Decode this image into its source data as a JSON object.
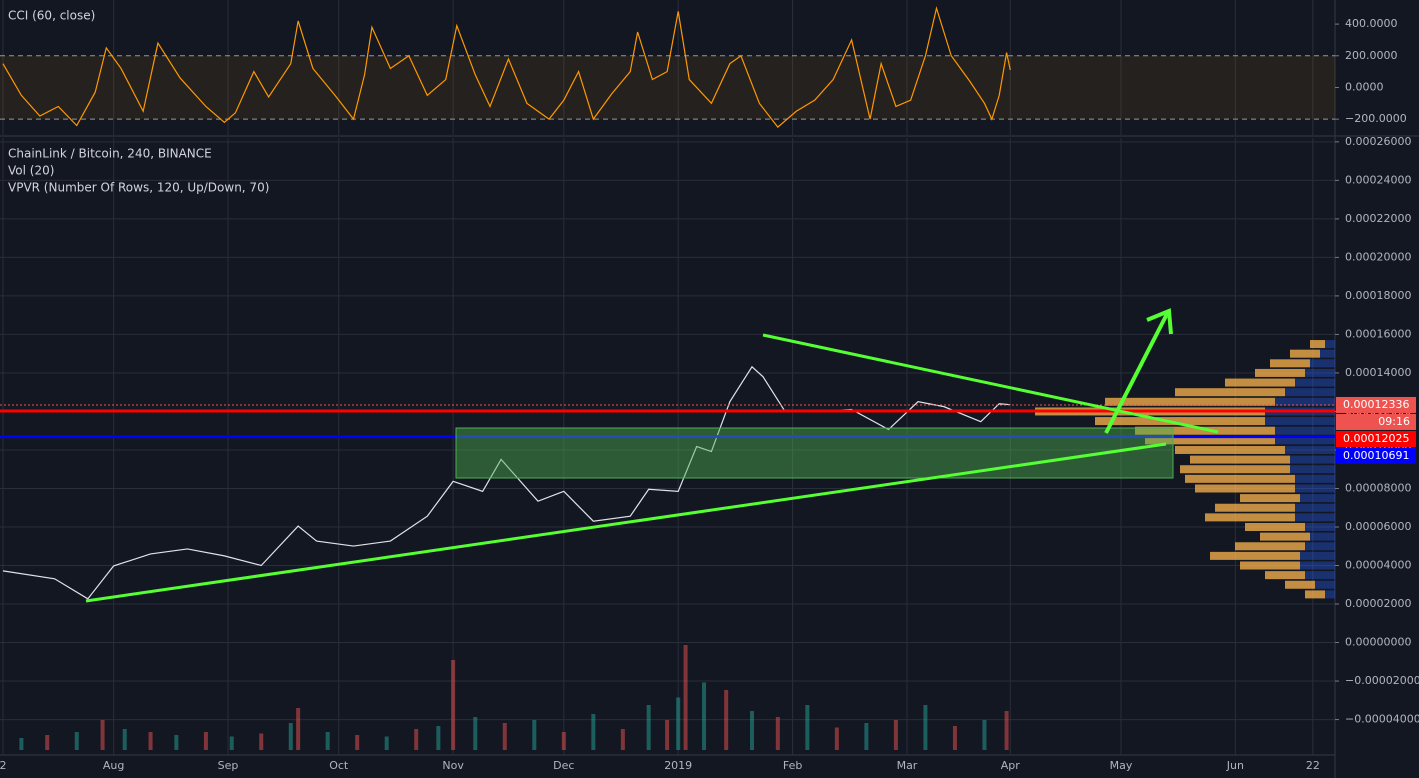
{
  "chart_data": [
    {
      "type": "line",
      "title": "CCI (60, close)",
      "color": "#ff9800",
      "band": [
        -200,
        200
      ],
      "band_color": "rgba(255,152,0,0.08)",
      "ylim": [
        -300,
        552
      ],
      "yticks": [
        {
          "value": 400,
          "label": "400.0000"
        },
        {
          "value": 200,
          "label": "200.0000"
        },
        {
          "value": 0,
          "label": "0.0000"
        },
        {
          "value": -200,
          "label": "−200.0000"
        }
      ],
      "x": [
        0,
        5,
        10,
        15,
        20,
        25,
        28,
        32,
        38,
        42,
        48,
        55,
        60,
        63,
        68,
        72,
        78,
        80,
        84,
        90,
        95,
        98,
        100,
        105,
        110,
        115,
        120,
        123,
        128,
        132,
        137,
        142,
        148,
        152,
        156,
        160,
        165,
        170,
        172,
        176,
        180,
        183,
        186,
        192,
        197,
        200,
        205,
        210,
        215,
        220,
        225,
        230,
        235,
        238,
        242,
        246,
        250,
        253,
        257,
        262,
        266,
        268,
        270,
        272,
        273
      ],
      "values": [
        150,
        -50,
        -180,
        -120,
        -240,
        -30,
        250,
        120,
        -150,
        280,
        60,
        -120,
        -220,
        -160,
        100,
        -60,
        150,
        420,
        120,
        -50,
        -200,
        80,
        380,
        120,
        200,
        -50,
        50,
        390,
        80,
        -120,
        180,
        -100,
        -200,
        -80,
        100,
        -200,
        -40,
        100,
        350,
        50,
        100,
        480,
        50,
        -100,
        150,
        200,
        -100,
        -250,
        -150,
        -80,
        50,
        300,
        -200,
        150,
        -120,
        -80,
        200,
        500,
        200,
        40,
        -100,
        -200,
        -50,
        220,
        110
      ]
    },
    {
      "type": "line",
      "title": "ChainLink / Bitcoin, 240, BINANCE",
      "subtitles": [
        "Vol (20)",
        "VPVR (Number Of Rows, 120, Up/Down, 70)"
      ],
      "color": "#e0e3eb",
      "ylim": [
        -5.84e-05,
        0.000262
      ],
      "yticks": [
        {
          "value": 0.00026,
          "label": "0.00026000"
        },
        {
          "value": 0.00024,
          "label": "0.00024000"
        },
        {
          "value": 0.00022,
          "label": "0.00022000"
        },
        {
          "value": 0.0002,
          "label": "0.00020000"
        },
        {
          "value": 0.00018,
          "label": "0.00018000"
        },
        {
          "value": 0.00016,
          "label": "0.00016000"
        },
        {
          "value": 0.00014,
          "label": "0.00014000"
        },
        {
          "value": 0.00012,
          "label": "0.00012000"
        },
        {
          "value": 0.0001,
          "label": "0.00010000"
        },
        {
          "value": 8e-05,
          "label": "0.00008000"
        },
        {
          "value": 6e-05,
          "label": "0.00006000"
        },
        {
          "value": 4e-05,
          "label": "0.00004000"
        },
        {
          "value": 2e-05,
          "label": "0.00002000"
        },
        {
          "value": 0,
          "label": "0.00000000"
        },
        {
          "value": -2e-05,
          "label": "−0.00002000"
        },
        {
          "value": -4e-05,
          "label": "−0.00004000"
        }
      ],
      "xlim": [
        -0.8,
        361
      ],
      "xticks": [
        {
          "value": 0,
          "label": "2"
        },
        {
          "value": 30,
          "label": "Aug"
        },
        {
          "value": 61,
          "label": "Sep"
        },
        {
          "value": 91,
          "label": "Oct"
        },
        {
          "value": 122,
          "label": "Nov"
        },
        {
          "value": 152,
          "label": "Dec"
        },
        {
          "value": 183,
          "label": "2019"
        },
        {
          "value": 214,
          "label": "Feb"
        },
        {
          "value": 245,
          "label": "Mar"
        },
        {
          "value": 273,
          "label": "Apr"
        },
        {
          "value": 303,
          "label": "May"
        },
        {
          "value": 334,
          "label": "Jun"
        },
        {
          "value": 355,
          "label": "22"
        }
      ],
      "grid": true,
      "x": [
        0,
        14,
        23,
        30,
        40,
        50,
        60,
        70,
        80,
        85,
        95,
        105,
        115,
        122,
        130,
        135,
        145,
        152,
        160,
        170,
        175,
        183,
        188,
        192,
        197,
        203,
        206,
        212,
        220,
        230,
        240,
        248,
        255,
        265,
        270,
        273
      ],
      "values": [
        3.72e-05,
        3.31e-05,
        2.27e-05,
        3.98e-05,
        4.6e-05,
        4.86e-05,
        4.5e-05,
        4e-05,
        6.05e-05,
        5.27e-05,
        5.01e-05,
        5.27e-05,
        6.56e-05,
        8.37e-05,
        7.85e-05,
        9.51e-05,
        7.34e-05,
        7.85e-05,
        6.3e-05,
        6.56e-05,
        7.96e-05,
        7.85e-05,
        0.0001018,
        9.92e-05,
        0.0001251,
        0.0001432,
        0.000138,
        0.0001199,
        0.0001199,
        0.000121,
        0.0001106,
        0.0001251,
        0.0001225,
        0.0001147,
        0.000124,
        0.0001235
      ],
      "volume": {
        "colors": [
          "rgba(38,166,154,0.5)",
          "rgba(239,83,80,0.5)"
        ],
        "x": [
          5,
          12,
          20,
          27,
          33,
          40,
          47,
          55,
          62,
          70,
          78,
          80,
          88,
          96,
          104,
          112,
          118,
          122,
          128,
          136,
          144,
          152,
          160,
          168,
          175,
          180,
          183,
          185,
          190,
          196,
          203,
          210,
          218,
          226,
          234,
          242,
          250,
          258,
          266,
          272
        ],
        "values": [
          8,
          10,
          12,
          20,
          14,
          12,
          10,
          12,
          9,
          11,
          18,
          28,
          12,
          10,
          9,
          14,
          16,
          60,
          22,
          18,
          20,
          12,
          24,
          14,
          30,
          20,
          35,
          70,
          45,
          40,
          26,
          22,
          30,
          15,
          18,
          20,
          30,
          16,
          20,
          26
        ]
      },
      "profile": {
        "colors": [
          "rgba(41,98,255,0.35)",
          "rgba(255,183,77,0.75)"
        ],
        "prices": [
          2.5e-05,
          3e-05,
          3.5e-05,
          4e-05,
          4.5e-05,
          5e-05,
          5.5e-05,
          6e-05,
          6.5e-05,
          7e-05,
          7.5e-05,
          8e-05,
          8.5e-05,
          9e-05,
          9.5e-05,
          0.0001,
          0.000105,
          0.00011,
          0.000115,
          0.00012,
          0.000125,
          0.00013,
          0.000135,
          0.00014,
          0.000145,
          0.00015,
          0.000155
        ],
        "up": [
          10,
          20,
          30,
          35,
          35,
          30,
          25,
          30,
          40,
          40,
          35,
          40,
          40,
          45,
          45,
          50,
          60,
          60,
          70,
          70,
          60,
          50,
          40,
          30,
          25,
          15,
          10
        ],
        "down": [
          20,
          30,
          40,
          60,
          90,
          70,
          50,
          60,
          90,
          80,
          60,
          100,
          110,
          110,
          100,
          110,
          130,
          140,
          170,
          230,
          170,
          110,
          70,
          50,
          40,
          30,
          15
        ]
      },
      "price_lines": [
        {
          "value": 0.00012336,
          "label": "0.00012336",
          "color": "#ef5350",
          "style": "dotted"
        },
        {
          "value": 0.00012025,
          "label": "0.00012025",
          "color": "#ff0000",
          "style": "solid"
        },
        {
          "value": 0.00010691,
          "label": "0.00010691",
          "color": "#0000ff",
          "style": "solid"
        }
      ],
      "countdown": "09:16"
    }
  ]
}
